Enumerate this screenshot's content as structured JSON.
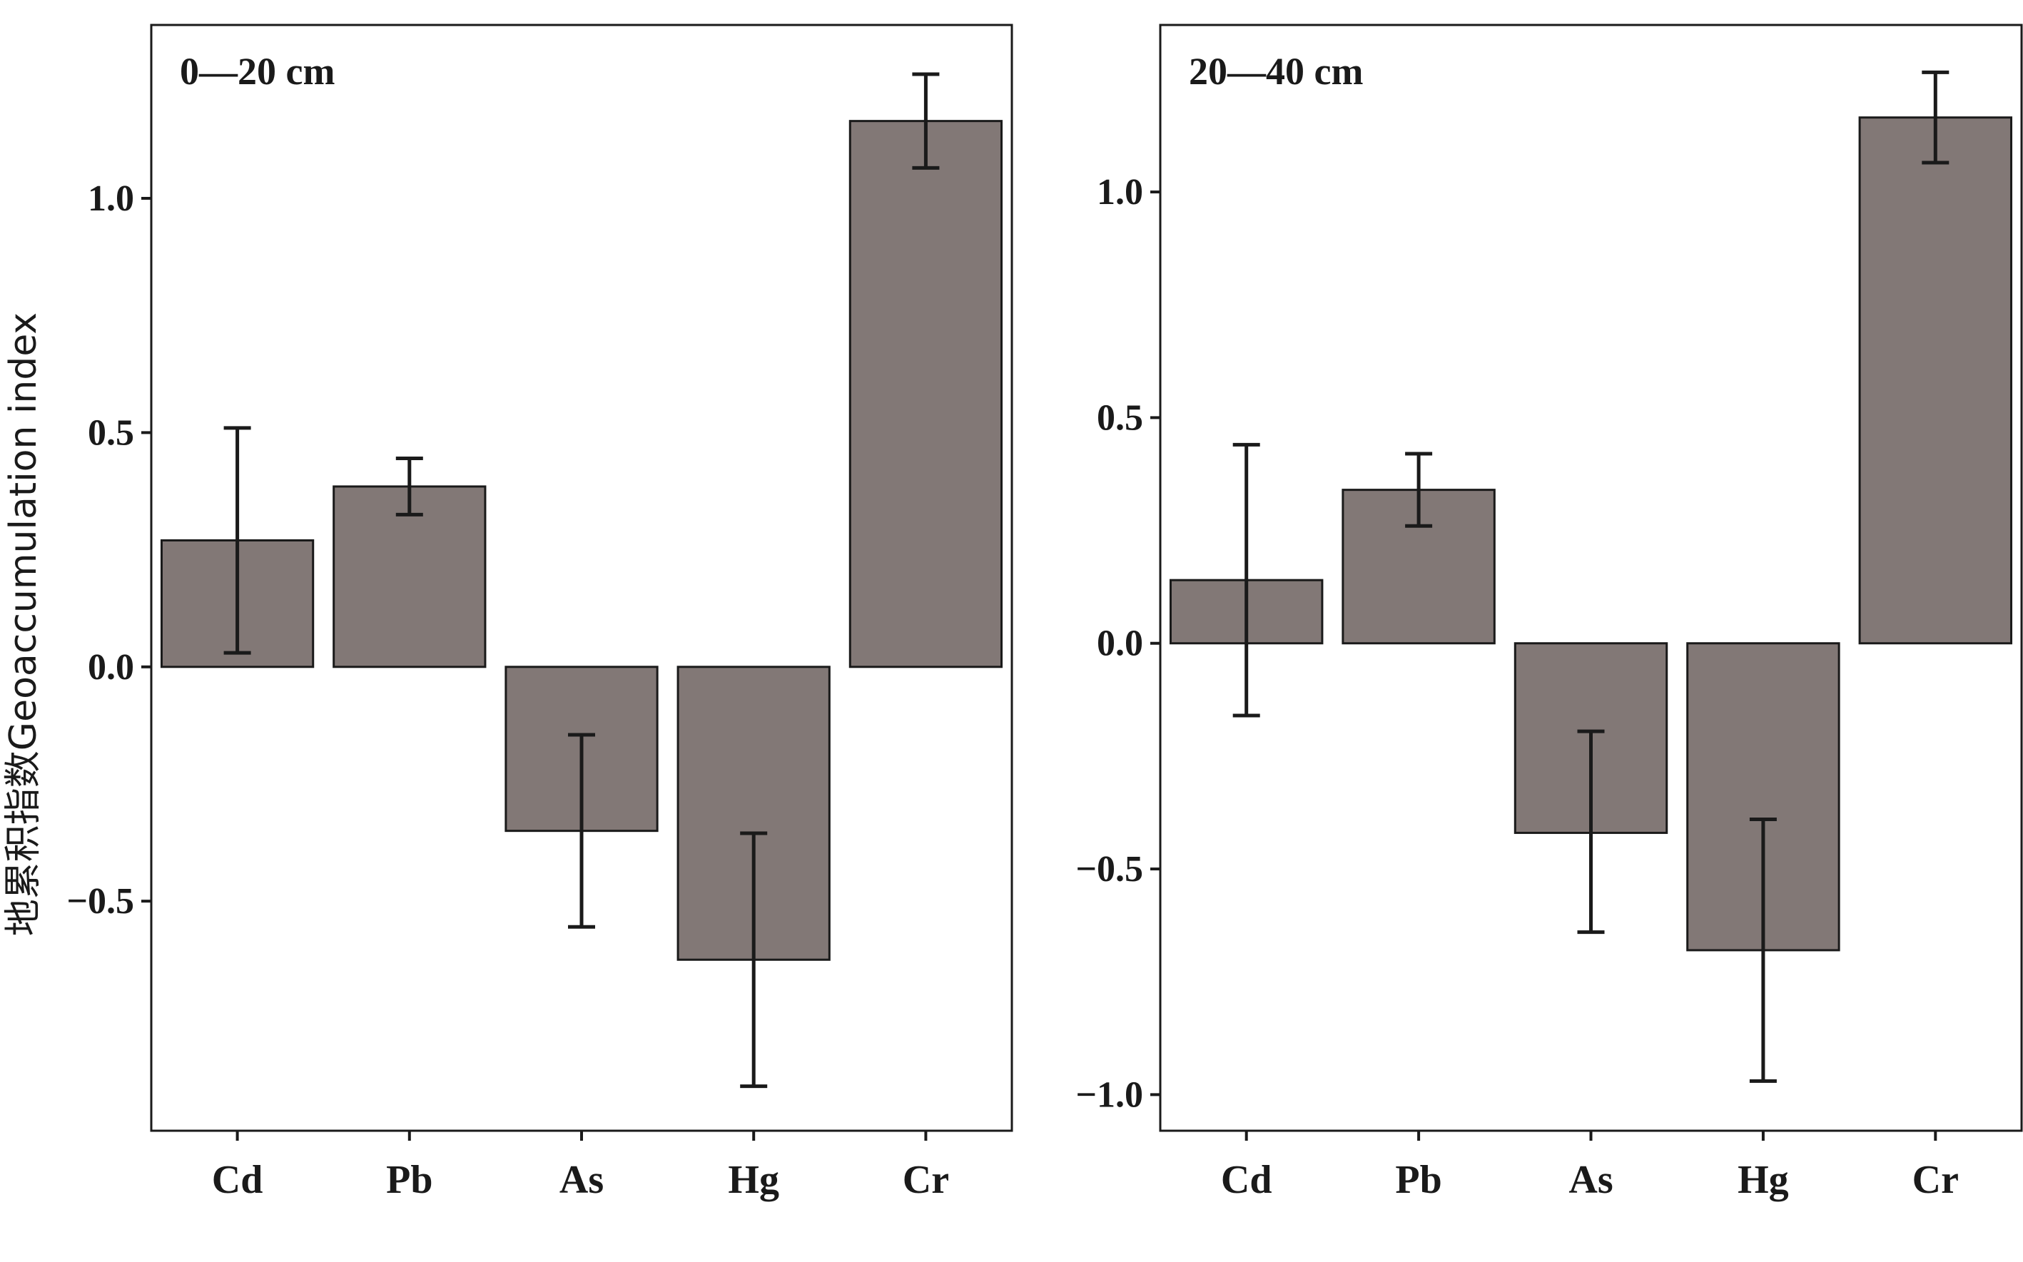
{
  "chart_data": [
    {
      "type": "bar",
      "title": "0—20 cm",
      "ylabel": "地累积指数Geoaccumulation index",
      "xlabel": "",
      "categories": [
        "Cd",
        "Pb",
        "As",
        "Hg",
        "Cr"
      ],
      "values": [
        0.27,
        0.385,
        -0.35,
        -0.625,
        1.165
      ],
      "error_low": [
        0.03,
        0.325,
        -0.555,
        -0.895,
        1.065
      ],
      "error_high": [
        0.51,
        0.445,
        -0.145,
        -0.355,
        1.265
      ],
      "ylim": [
        -0.99,
        1.37
      ],
      "yticks": [
        1.0,
        0.5,
        0.0,
        -0.5
      ],
      "ytick_labels": [
        "1.0",
        "0.5",
        "0.0",
        "−0.5"
      ],
      "bar_color": "#827876",
      "grid": false
    },
    {
      "type": "bar",
      "title": "20—40 cm",
      "ylabel": "",
      "xlabel": "",
      "categories": [
        "Cd",
        "Pb",
        "As",
        "Hg",
        "Cr"
      ],
      "values": [
        0.14,
        0.34,
        -0.42,
        -0.68,
        1.165
      ],
      "error_low": [
        -0.16,
        0.26,
        -0.64,
        -0.97,
        1.065
      ],
      "error_high": [
        0.44,
        0.42,
        -0.195,
        -0.39,
        1.265
      ],
      "ylim": [
        -1.08,
        1.37
      ],
      "yticks": [
        1.0,
        0.5,
        0.0,
        -0.5,
        -1.0
      ],
      "ytick_labels": [
        "1.0",
        "0.5",
        "0.0",
        "−0.5",
        "−1.0"
      ],
      "bar_color": "#827876",
      "grid": false
    }
  ]
}
